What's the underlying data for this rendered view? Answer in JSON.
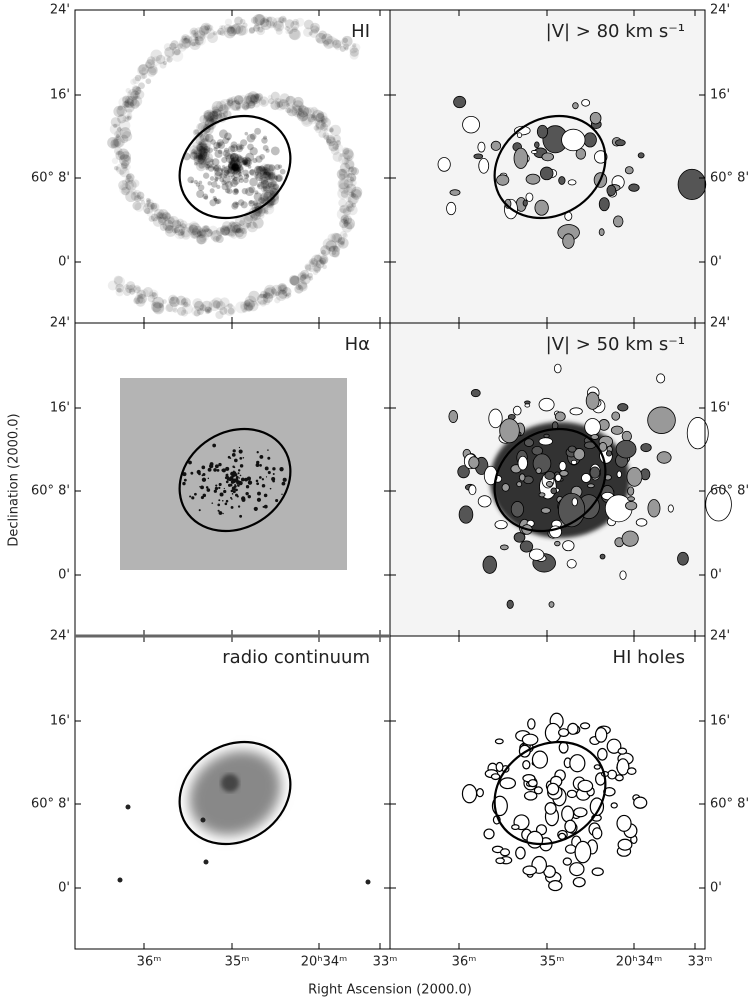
{
  "figure": {
    "panels": [
      {
        "label": "HI"
      },
      {
        "label": "|V| > 80 km s⁻¹"
      },
      {
        "label": "Hα"
      },
      {
        "label": "|V| > 50 km s⁻¹"
      },
      {
        "label": "radio continuum"
      },
      {
        "label": "HI holes"
      }
    ],
    "axes": {
      "y_title": "Declination (2000.0)",
      "x_title": "Right Ascension (2000.0)",
      "y_ticks": [
        "24'",
        "16'",
        "60° 8'",
        "0'"
      ],
      "x_ticks": [
        "36ᵐ",
        "35ᵐ",
        "20ʰ34ᵐ",
        "33ᵐ"
      ]
    }
  }
}
